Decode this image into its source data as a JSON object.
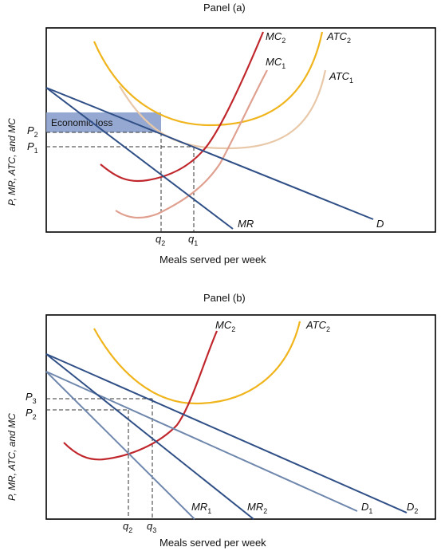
{
  "panel_a": {
    "title": "Panel (a)",
    "ylabel": "P, MR, ATC, and MC",
    "xlabel": "Meals served per week",
    "loss_label": "Economic loss",
    "curves": {
      "mc2": {
        "base": "MC",
        "sub": "2"
      },
      "mc1": {
        "base": "MC",
        "sub": "1"
      },
      "atc2": {
        "base": "ATC",
        "sub": "2"
      },
      "atc1": {
        "base": "ATC",
        "sub": "1"
      },
      "mr": {
        "base": "MR",
        "sub": ""
      },
      "d": {
        "base": "D",
        "sub": ""
      }
    },
    "price_ticks": [
      {
        "base": "P",
        "sub": "2"
      },
      {
        "base": "P",
        "sub": "1"
      }
    ],
    "qty_ticks": [
      {
        "base": "q",
        "sub": "2"
      },
      {
        "base": "q",
        "sub": "1"
      }
    ]
  },
  "panel_b": {
    "title": "Panel (b)",
    "ylabel": "P, MR, ATC, and MC",
    "xlabel": "Meals served per week",
    "curves": {
      "mc2": {
        "base": "MC",
        "sub": "2"
      },
      "atc2": {
        "base": "ATC",
        "sub": "2"
      },
      "mr1": {
        "base": "MR",
        "sub": "1"
      },
      "mr2": {
        "base": "MR",
        "sub": "2"
      },
      "d1": {
        "base": "D",
        "sub": "1"
      },
      "d2": {
        "base": "D",
        "sub": "2"
      }
    },
    "price_ticks": [
      {
        "base": "P",
        "sub": "3"
      },
      {
        "base": "P",
        "sub": "2"
      }
    ],
    "qty_ticks": [
      {
        "base": "q",
        "sub": "2"
      },
      {
        "base": "q",
        "sub": "3"
      }
    ]
  },
  "colors": {
    "demand": "#2f4f86",
    "demand_light": "#6f87ad",
    "mc_dark": "#c0272d",
    "mc_light": "#e0a090",
    "atc_dark": "#f0b41c",
    "atc_light": "#e8c8a8",
    "loss_fill": "#8fa3cf"
  }
}
